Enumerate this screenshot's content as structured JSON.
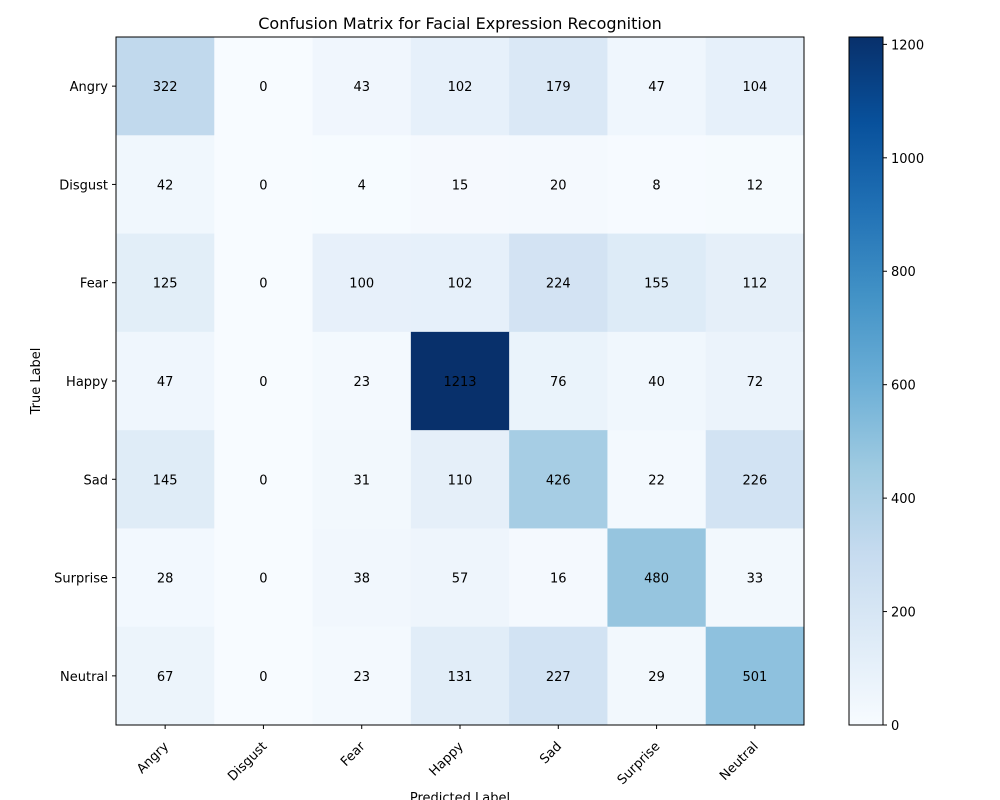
{
  "chart_data": {
    "type": "heatmap",
    "title": "Confusion Matrix for Facial Expression Recognition",
    "xlabel": "Predicted Label",
    "ylabel": "True Label",
    "x_categories": [
      "Angry",
      "Disgust",
      "Fear",
      "Happy",
      "Sad",
      "Surprise",
      "Neutral"
    ],
    "y_categories": [
      "Angry",
      "Disgust",
      "Fear",
      "Happy",
      "Sad",
      "Surprise",
      "Neutral"
    ],
    "values": [
      [
        322,
        0,
        43,
        102,
        179,
        47,
        104
      ],
      [
        42,
        0,
        4,
        15,
        20,
        8,
        12
      ],
      [
        125,
        0,
        100,
        102,
        224,
        155,
        112
      ],
      [
        47,
        0,
        23,
        1213,
        76,
        40,
        72
      ],
      [
        145,
        0,
        31,
        110,
        426,
        22,
        226
      ],
      [
        28,
        0,
        38,
        57,
        16,
        480,
        33
      ],
      [
        67,
        0,
        23,
        131,
        227,
        29,
        501
      ]
    ],
    "colormap": "Blues",
    "colorbar": {
      "min": 0,
      "max": 1213,
      "ticks": [
        0,
        200,
        400,
        600,
        800,
        1000,
        1200
      ]
    },
    "grid": false
  }
}
